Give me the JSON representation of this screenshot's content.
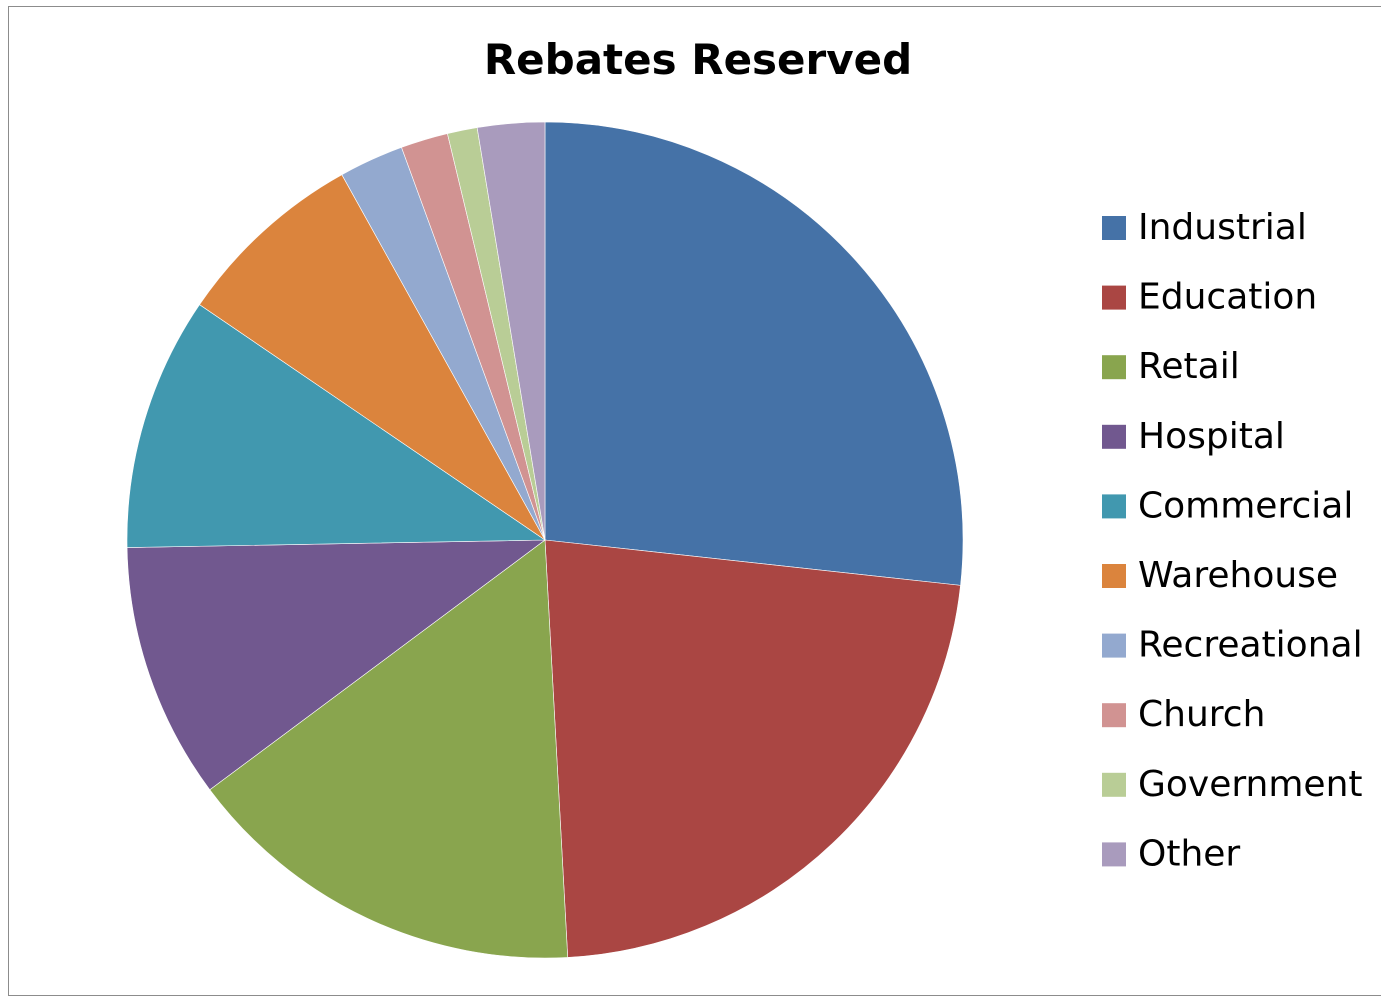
{
  "chart_data": {
    "type": "pie",
    "title": "Rebates Reserved",
    "legend_position": "right",
    "start_angle_deg": 0,
    "direction": "clockwise",
    "slices": [
      {
        "label": "Industrial",
        "value": 27.8,
        "color": "#4572A7"
      },
      {
        "label": "Education",
        "value": 23.3,
        "color": "#AA4643"
      },
      {
        "label": "Retail",
        "value": 16.3,
        "color": "#89A54E"
      },
      {
        "label": "Hospital",
        "value": 10.3,
        "color": "#71588F"
      },
      {
        "label": "Commercial",
        "value": 10.2,
        "color": "#4198AF"
      },
      {
        "label": "Warehouse",
        "value": 7.7,
        "color": "#DB843D"
      },
      {
        "label": "Recreational",
        "value": 2.6,
        "color": "#93A9CF"
      },
      {
        "label": "Church",
        "value": 1.9,
        "color": "#D19392"
      },
      {
        "label": "Government",
        "value": 1.2,
        "color": "#B9CD96"
      },
      {
        "label": "Other",
        "value": 2.7,
        "color": "#A99BBD"
      }
    ]
  }
}
